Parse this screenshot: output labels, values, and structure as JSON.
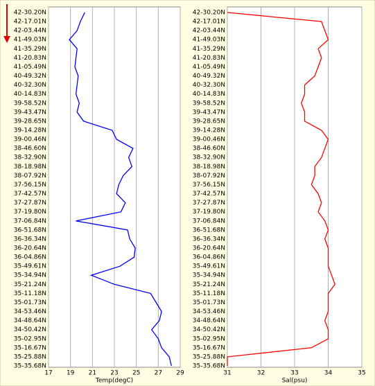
{
  "chart_data": [
    {
      "type": "line",
      "x_label": "Temp(degC)",
      "color": "#0000ff",
      "categories": [
        "42-30.20N",
        "42-17.01N",
        "42-03.44N",
        "41-49.03N",
        "41-35.29N",
        "41-20.83N",
        "41-05.49N",
        "40-49.32N",
        "40-32.30N",
        "40-14.83N",
        "39-58.52N",
        "39-43.47N",
        "39-28.65N",
        "39-14.28N",
        "39-00.46N",
        "38-46.60N",
        "38-32.90N",
        "38-18.98N",
        "38-07.92N",
        "37-56.15N",
        "37-42.57N",
        "37-27.87N",
        "37-19.80N",
        "37-06.84N",
        "36-51.68N",
        "36-36.34N",
        "36-20.64N",
        "36-04.86N",
        "35-49.61N",
        "35-34.94N",
        "35-21.24N",
        "35-11.18N",
        "35-01.73N",
        "34-53.46N",
        "34-48.64N",
        "34-50.42N",
        "35-02.95N",
        "35-16.67N",
        "35-25.88N",
        "35-35.68N"
      ],
      "values": [
        20.3,
        19.9,
        19.6,
        18.9,
        19.6,
        19.5,
        19.4,
        19.7,
        19.6,
        19.5,
        19.8,
        19.6,
        20.2,
        22.8,
        23.2,
        24.7,
        24.3,
        24.6,
        23.8,
        23.4,
        23.2,
        24.0,
        23.6,
        19.5,
        24.2,
        24.4,
        24.9,
        24.8,
        23.5,
        20.9,
        23.0,
        26.3,
        26.8,
        27.3,
        27.1,
        26.4,
        27.0,
        27.3,
        28.0,
        28.2
      ],
      "xlim": [
        17,
        29
      ],
      "xticks": [
        17,
        19,
        21,
        23,
        25,
        27,
        29
      ],
      "grid": true
    },
    {
      "type": "line",
      "x_label": "Sal(psu)",
      "color": "#ff0000",
      "categories": [
        "42-30.20N",
        "42-17.01N",
        "42-03.44N",
        "41-49.03N",
        "41-35.29N",
        "41-20.83N",
        "41-05.49N",
        "40-49.32N",
        "40-32.30N",
        "40-14.83N",
        "39-58.52N",
        "39-43.47N",
        "39-28.65N",
        "39-14.28N",
        "39-00.46N",
        "38-46.60N",
        "38-32.90N",
        "38-18.98N",
        "38-07.92N",
        "37-56.15N",
        "37-42.57N",
        "37-27.87N",
        "37-19.80N",
        "37-06.84N",
        "36-51.68N",
        "36-36.34N",
        "36-20.64N",
        "36-04.86N",
        "35-49.61N",
        "35-34.94N",
        "35-21.24N",
        "35-11.18N",
        "35-01.73N",
        "34-53.46N",
        "34-48.64N",
        "34-50.42N",
        "35-02.95N",
        "35-16.67N",
        "35-25.88N",
        "35-35.68N"
      ],
      "values": [
        31.0,
        33.8,
        33.9,
        34.0,
        33.7,
        33.8,
        33.7,
        33.6,
        33.3,
        33.3,
        33.2,
        33.3,
        33.3,
        33.8,
        34.0,
        33.9,
        33.8,
        33.6,
        33.6,
        33.5,
        33.7,
        33.8,
        33.7,
        33.9,
        34.0,
        33.9,
        34.0,
        34.0,
        34.0,
        34.1,
        34.2,
        34.0,
        34.0,
        34.0,
        33.9,
        34.0,
        34.0,
        33.5,
        31.0,
        31.0
      ],
      "xlim": [
        31,
        35
      ],
      "xticks": [
        31,
        32,
        33,
        34,
        35
      ],
      "grid": true
    }
  ]
}
